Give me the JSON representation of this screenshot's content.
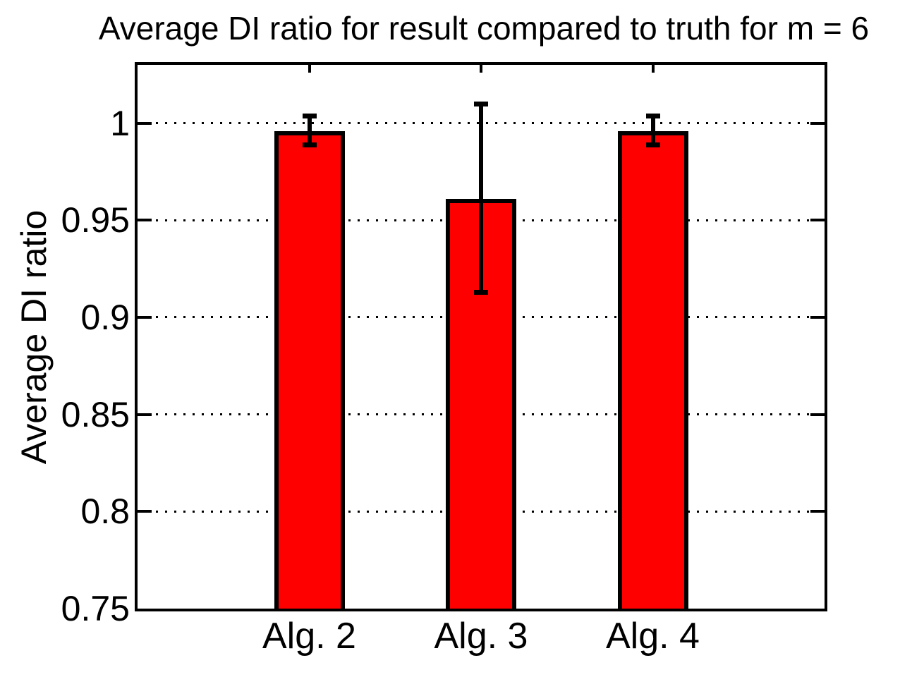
{
  "figure": {
    "background_color": "#ffffff",
    "text_color": "#000000"
  },
  "chart_data": {
    "type": "bar",
    "title": "Average DI ratio for result compared to truth for m = 6",
    "xlabel": "",
    "ylabel": "Average DI ratio",
    "categories": [
      "Alg. 2",
      "Alg. 3",
      "Alg. 4"
    ],
    "values": [
      0.996,
      0.961,
      0.996
    ],
    "error_low": [
      0.989,
      0.913,
      0.989
    ],
    "error_high": [
      1.004,
      1.01,
      1.004
    ],
    "ylim": [
      0.75,
      1.03
    ],
    "yticks": [
      0.75,
      0.8,
      0.85,
      0.9,
      0.95,
      1
    ],
    "ytick_labels": [
      "0.75",
      "0.8",
      "0.85",
      "0.9",
      "0.95",
      "1"
    ],
    "grid": "horizontal-dotted",
    "legend": null,
    "bar_color": "#ff0000",
    "bar_edge_color": "#000000",
    "errorbar_color": "#000000",
    "axis_color": "#000000",
    "grid_color": "#000000"
  }
}
